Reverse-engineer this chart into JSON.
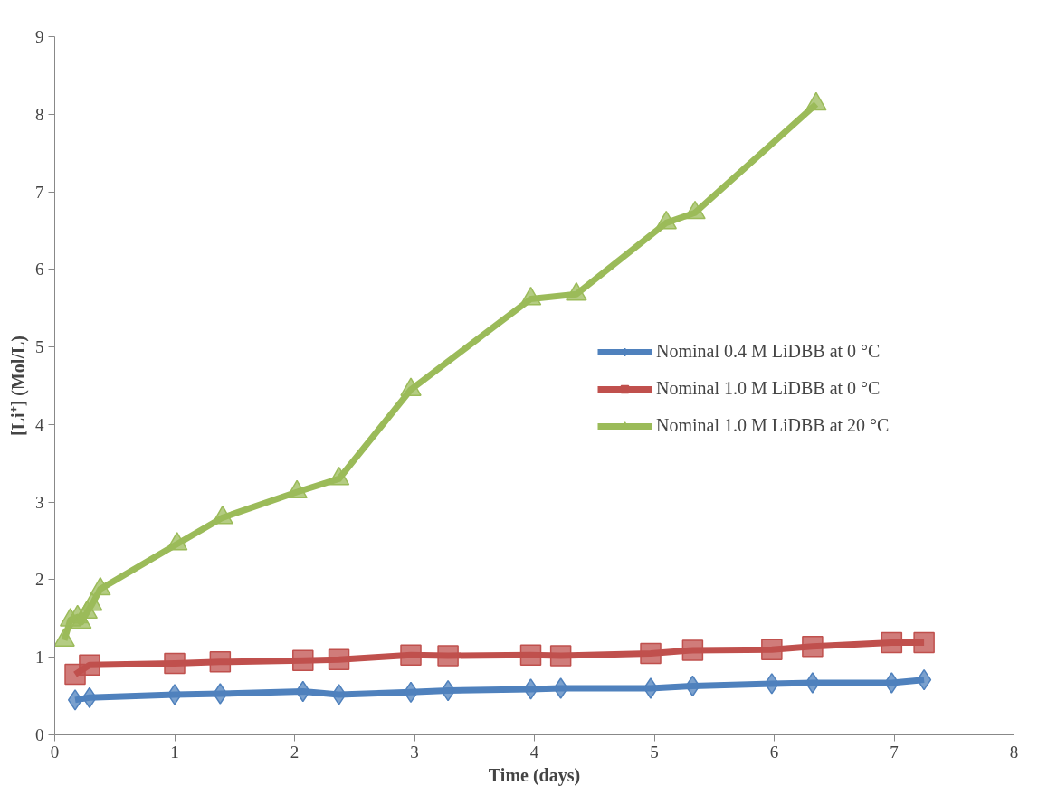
{
  "chart_data": {
    "type": "line",
    "xlabel": "Time (days)",
    "ylabel": "[Li⁺] (Mol/L)",
    "xlim": [
      0,
      8
    ],
    "ylim": [
      0,
      9
    ],
    "xticks": [
      0,
      1,
      2,
      3,
      4,
      5,
      6,
      7,
      8
    ],
    "yticks": [
      0,
      1,
      2,
      3,
      4,
      5,
      6,
      7,
      8,
      9
    ],
    "grid": false,
    "legend": "right",
    "series": [
      {
        "name": "Nominal 0.4 M LiDBB at 0 °C",
        "color": "#4f81bd",
        "marker": "diamond",
        "x": [
          0.17,
          0.29,
          1.0,
          1.38,
          2.07,
          2.37,
          2.97,
          3.28,
          3.97,
          4.22,
          4.97,
          5.32,
          5.98,
          6.32,
          6.98,
          7.25
        ],
        "values": [
          0.45,
          0.48,
          0.52,
          0.53,
          0.56,
          0.52,
          0.55,
          0.57,
          0.59,
          0.6,
          0.6,
          0.63,
          0.66,
          0.67,
          0.67,
          0.71
        ]
      },
      {
        "name": "Nominal 1.0 M LiDBB at 0 °C",
        "color": "#c0504d",
        "marker": "square",
        "x": [
          0.17,
          0.29,
          1.0,
          1.38,
          2.07,
          2.37,
          2.97,
          3.28,
          3.97,
          4.22,
          4.97,
          5.32,
          5.98,
          6.32,
          6.98,
          7.25
        ],
        "values": [
          0.78,
          0.9,
          0.92,
          0.94,
          0.96,
          0.97,
          1.03,
          1.02,
          1.03,
          1.02,
          1.05,
          1.09,
          1.1,
          1.14,
          1.19,
          1.19
        ]
      },
      {
        "name": "Nominal 1.0 M LiDBB at 20 °C",
        "color": "#9bbb59",
        "marker": "triangle",
        "x": [
          0.08,
          0.13,
          0.19,
          0.22,
          0.27,
          0.31,
          0.38,
          1.02,
          1.4,
          2.02,
          2.37,
          2.97,
          3.97,
          4.35,
          5.1,
          5.34,
          6.35
        ],
        "values": [
          1.22,
          1.48,
          1.52,
          1.45,
          1.58,
          1.68,
          1.88,
          2.46,
          2.8,
          3.13,
          3.3,
          4.45,
          5.62,
          5.68,
          6.6,
          6.73,
          8.13
        ]
      }
    ]
  }
}
